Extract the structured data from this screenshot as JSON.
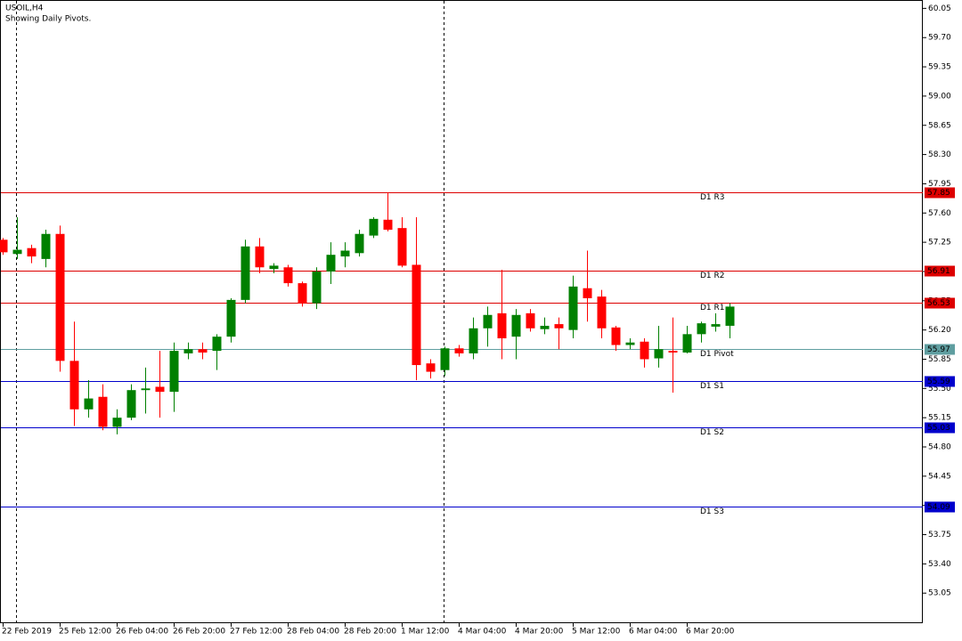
{
  "chart_data": {
    "type": "candlestick",
    "title": "USOIL,H4",
    "subtitle": "Showing Daily Pivots.",
    "categories": [
      "22 Feb 2019",
      null,
      null,
      null,
      "25 Feb 12:00",
      null,
      null,
      null,
      "26 Feb 04:00",
      null,
      null,
      null,
      "26 Feb 20:00",
      null,
      null,
      null,
      "27 Feb 12:00",
      null,
      null,
      null,
      "28 Feb 04:00",
      null,
      null,
      null,
      "28 Feb 20:00",
      null,
      null,
      null,
      "1 Mar 12:00",
      null,
      null,
      null,
      "4 Mar 04:00",
      null,
      null,
      null,
      "4 Mar 20:00",
      null,
      null,
      null,
      "5 Mar 12:00",
      null,
      null,
      null,
      "6 Mar 04:00",
      null,
      null,
      null,
      "6 Mar 20:00",
      null,
      null,
      null
    ],
    "open": [
      57.28,
      57.11,
      57.18,
      57.05,
      57.35,
      55.83,
      55.25,
      55.4,
      55.04,
      55.15,
      55.48,
      55.52,
      55.46,
      55.92,
      55.97,
      55.95,
      56.12,
      56.56,
      57.2,
      56.93,
      56.95,
      56.76,
      56.52,
      56.9,
      57.08,
      57.12,
      57.33,
      57.52,
      57.42,
      56.98,
      55.8,
      55.72,
      55.98,
      55.92,
      56.22,
      56.4,
      56.12,
      56.4,
      56.21,
      56.27,
      56.2,
      56.7,
      56.6,
      56.23,
      56.02,
      56.06,
      55.86,
      55.95,
      55.93,
      56.15,
      56.24,
      56.25
    ],
    "high": [
      57.3,
      57.55,
      57.22,
      57.4,
      57.45,
      56.3,
      55.6,
      55.55,
      55.25,
      55.55,
      55.75,
      55.95,
      56.05,
      56.05,
      56.05,
      56.15,
      56.58,
      57.28,
      57.3,
      57.0,
      56.98,
      56.78,
      56.95,
      57.25,
      57.25,
      57.4,
      57.55,
      57.85,
      57.55,
      57.55,
      55.85,
      56.0,
      56.02,
      56.35,
      56.48,
      56.92,
      56.45,
      56.45,
      56.35,
      56.35,
      56.85,
      57.15,
      56.68,
      56.25,
      56.1,
      56.1,
      56.25,
      56.35,
      56.25,
      56.3,
      56.4,
      56.52
    ],
    "low": [
      57.1,
      57.05,
      57.0,
      56.95,
      55.7,
      55.05,
      55.15,
      55.0,
      54.95,
      55.12,
      55.2,
      55.15,
      55.22,
      55.85,
      55.85,
      55.72,
      56.05,
      56.52,
      56.88,
      56.88,
      56.72,
      56.48,
      56.45,
      56.75,
      56.95,
      57.08,
      57.3,
      57.38,
      56.95,
      55.6,
      55.62,
      55.65,
      55.88,
      55.85,
      56.0,
      55.85,
      55.85,
      56.18,
      56.15,
      55.97,
      56.1,
      56.3,
      56.1,
      55.95,
      55.97,
      55.75,
      55.75,
      55.45,
      55.92,
      56.05,
      56.18,
      56.1
    ],
    "close": [
      57.13,
      57.16,
      57.08,
      57.35,
      55.83,
      55.25,
      55.38,
      55.04,
      55.15,
      55.48,
      55.5,
      55.46,
      55.95,
      55.97,
      55.93,
      56.12,
      56.56,
      57.2,
      56.95,
      56.97,
      56.76,
      56.52,
      56.9,
      57.1,
      57.15,
      57.35,
      57.53,
      57.4,
      56.97,
      55.78,
      55.7,
      55.98,
      55.92,
      56.22,
      56.38,
      56.1,
      56.38,
      56.22,
      56.25,
      56.22,
      56.72,
      56.58,
      56.22,
      56.02,
      56.05,
      55.85,
      55.97,
      55.93,
      56.15,
      56.28,
      56.27,
      56.48
    ],
    "up_color": "#008000",
    "down_color": "#ff0000",
    "pivots": [
      {
        "name": "D1  R3",
        "value": 57.85,
        "color": "#dd0000"
      },
      {
        "name": "D1  R2",
        "value": 56.91,
        "color": "#dd0000"
      },
      {
        "name": "D1  R1",
        "value": 56.53,
        "color": "#dd0000"
      },
      {
        "name": "D1  Pivot",
        "value": 55.97,
        "color": "#5f9ea0"
      },
      {
        "name": "D1  S1",
        "value": 55.59,
        "color": "#0000cc"
      },
      {
        "name": "D1  S2",
        "value": 55.03,
        "color": "#0000cc"
      },
      {
        "name": "D1  S3",
        "value": 54.09,
        "color": "#0000cc"
      }
    ],
    "ylim": [
      52.69,
      60.15
    ],
    "yticks": [
      60.05,
      {
        "value": 59.7,
        "label": "59.70"
      },
      59.35,
      {
        "value": 59.0,
        "label": "59.00"
      },
      58.65,
      {
        "value": 58.3,
        "label": "58.30"
      },
      57.95,
      {
        "value": 57.6,
        "label": "57.60"
      },
      57.25,
      {
        "value": 56.9,
        "label": "56.90"
      },
      56.55,
      {
        "value": 56.2,
        "label": "56.20"
      },
      55.85,
      {
        "value": 55.5,
        "label": "55.50"
      },
      55.15,
      {
        "value": 54.8,
        "label": "54.80"
      },
      54.45,
      {
        "value": 54.1,
        "label": "54.10"
      },
      53.75,
      {
        "value": 53.4,
        "label": "53.40"
      },
      53.05
    ]
  }
}
